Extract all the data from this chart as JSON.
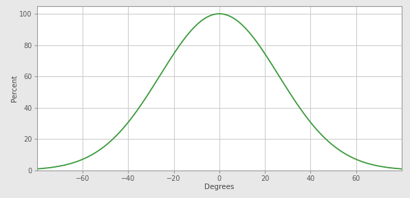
{
  "title": "",
  "xlabel": "Degrees",
  "ylabel": "Percent",
  "xlim": [
    -80,
    80
  ],
  "ylim": [
    0,
    105
  ],
  "xticks": [
    -60,
    -40,
    -20,
    0,
    20,
    40,
    60
  ],
  "yticks": [
    0,
    20,
    40,
    60,
    80,
    100
  ],
  "line_color": "#3a9a3a",
  "line_width": 1.3,
  "sigma": 26.0,
  "peak": 100.0,
  "background_color": "#e8e8e8",
  "plot_bg_color": "#ffffff",
  "grid_color": "#c8c8c8",
  "tick_label_color": "#555555",
  "axis_label_color": "#444444",
  "border_color": "#999999"
}
